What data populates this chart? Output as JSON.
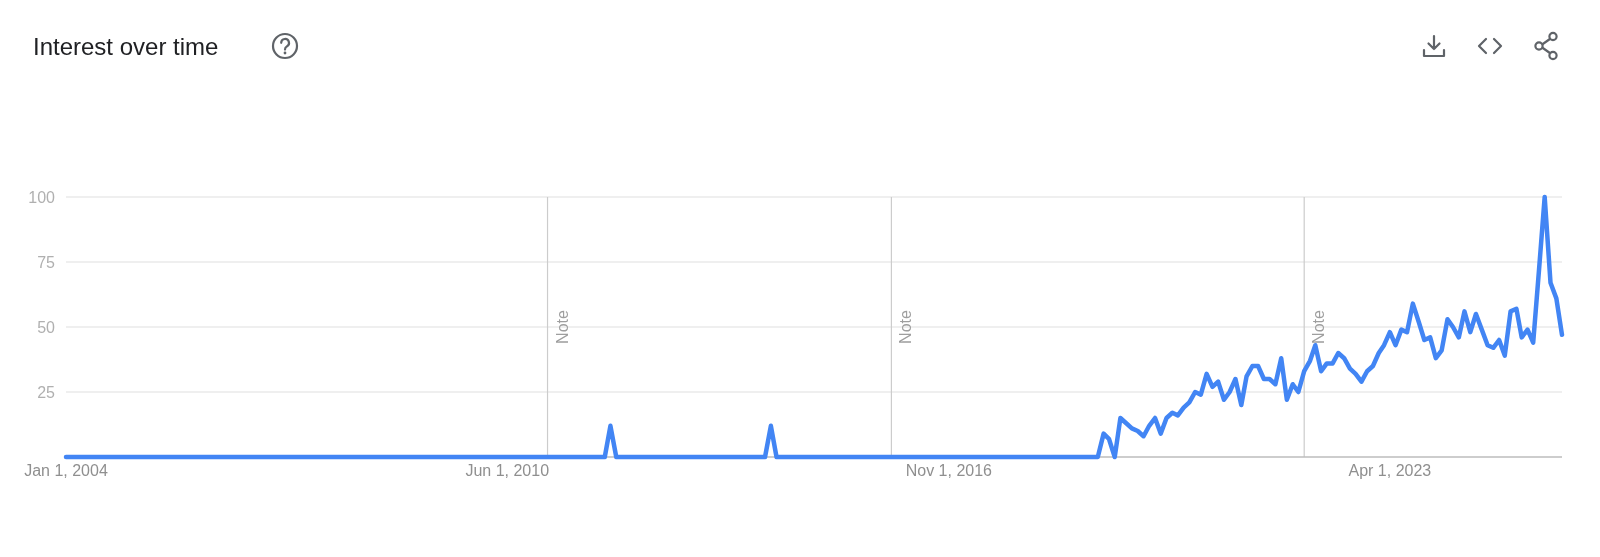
{
  "chart_data": {
    "type": "line",
    "title": "Interest over time",
    "x": [
      "2004-01",
      "2011-11",
      "2011-12",
      "2012-01",
      "2014-03",
      "2014-04",
      "2014-05",
      "2019-01",
      "2019-02",
      "2019-03",
      "2019-04",
      "2019-05",
      "2019-06",
      "2019-07",
      "2019-08",
      "2019-09",
      "2019-10",
      "2019-11",
      "2019-12",
      "2020-01",
      "2020-02",
      "2020-03",
      "2020-04",
      "2020-05",
      "2020-06",
      "2020-07",
      "2020-08",
      "2020-09",
      "2020-10",
      "2020-11",
      "2020-12",
      "2021-01",
      "2021-02",
      "2021-03",
      "2021-04",
      "2021-05",
      "2021-06",
      "2021-07",
      "2021-08",
      "2021-09",
      "2021-10",
      "2021-11",
      "2021-12",
      "2022-01",
      "2022-02",
      "2022-03",
      "2022-04",
      "2022-05",
      "2022-06",
      "2022-07",
      "2022-08",
      "2022-09",
      "2022-10",
      "2022-11",
      "2022-12",
      "2023-01",
      "2023-02",
      "2023-03",
      "2023-04",
      "2023-05",
      "2023-06",
      "2023-07",
      "2023-08",
      "2023-09",
      "2023-10",
      "2023-11",
      "2023-12",
      "2024-01",
      "2024-02",
      "2024-03",
      "2024-04",
      "2024-05",
      "2024-06",
      "2024-07",
      "2024-08",
      "2024-09",
      "2024-10",
      "2024-11",
      "2024-12",
      "2025-01",
      "2025-02",
      "2025-03",
      "2025-04",
      "2025-05",
      "2025-06",
      "2025-07",
      "2025-08",
      "2025-09",
      "2025-10"
    ],
    "series": [
      {
        "color": "#4285f4",
        "values": [
          0,
          0,
          12,
          0,
          0,
          12,
          0,
          0,
          9,
          7,
          0,
          15,
          13,
          11,
          10,
          8,
          12,
          15,
          9,
          15,
          17,
          16,
          19,
          21,
          25,
          24,
          32,
          27,
          29,
          22,
          25,
          30,
          20,
          31,
          35,
          35,
          30,
          30,
          28,
          38,
          22,
          28,
          25,
          33,
          37,
          43,
          33,
          36,
          36,
          40,
          38,
          34,
          32,
          29,
          33,
          35,
          40,
          43,
          48,
          43,
          49,
          48,
          59,
          52,
          45,
          46,
          38,
          41,
          53,
          50,
          46,
          56,
          48,
          55,
          49,
          43,
          42,
          45,
          39,
          56,
          57,
          46,
          49,
          44,
          72,
          100,
          67,
          61,
          47
        ]
      }
    ],
    "xlim": [
      "2004-01-01",
      "2025-10-01"
    ],
    "xticks": [
      {
        "value": "2004-01-01",
        "label": "Jan 1, 2004"
      },
      {
        "value": "2010-06-01",
        "label": "Jun 1, 2010"
      },
      {
        "value": "2016-11-01",
        "label": "Nov 1, 2016"
      },
      {
        "value": "2023-04-01",
        "label": "Apr 1, 2023"
      }
    ],
    "ylim": [
      0,
      100
    ],
    "yticks": [
      25,
      50,
      75,
      100
    ],
    "grid": "y",
    "ref_lines": [
      {
        "axis": "x",
        "value": "2011-01-01",
        "label": "Note"
      },
      {
        "axis": "x",
        "value": "2016-01-01",
        "label": "Note"
      },
      {
        "axis": "x",
        "value": "2022-01-01",
        "label": "Note"
      }
    ]
  }
}
